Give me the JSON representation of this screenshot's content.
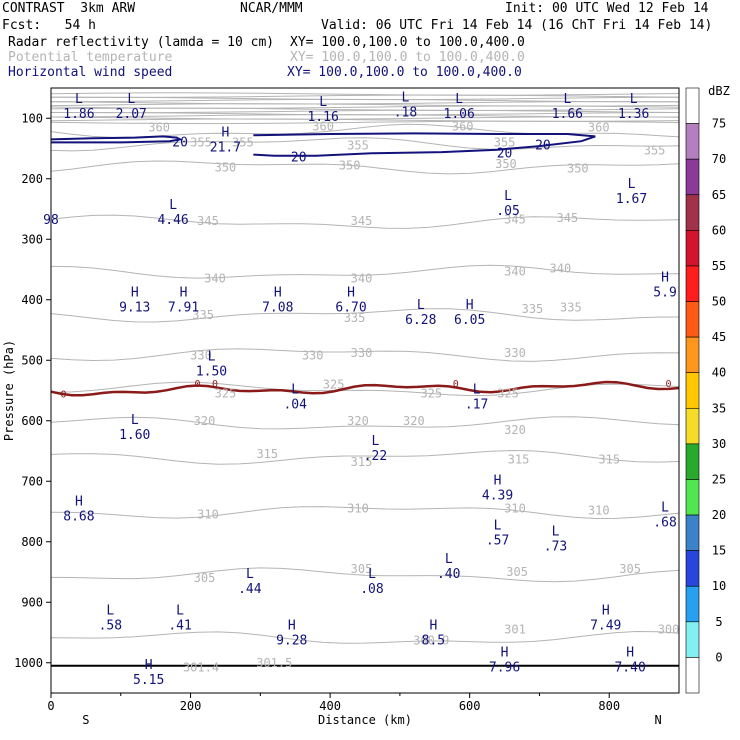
{
  "header": {
    "model": "CONTRAST  3km ARW",
    "source": "NCAR/MMM",
    "init": "Init: 00 UTC Wed 12 Feb 14",
    "fcst": "Fcst:   54 h",
    "valid": "Valid: 06 UTC Fri 14 Feb 14 (16 ChT Fri 14 Feb 14)",
    "fields": [
      {
        "name": "Radar reflectivity (lamda = 10 cm)",
        "xy": "XY= 100.0,100.0 to 100.0,400.0",
        "color": "#000000"
      },
      {
        "name": "Potential temperature",
        "xy": "XY= 100.0,100.0 to 100.0,400.0",
        "color": "#b4b4b4"
      },
      {
        "name": "Horizontal wind speed",
        "xy": "XY= 100.0,100.0 to 100.0,400.0",
        "color": "#12127a"
      }
    ]
  },
  "chart_data": {
    "type": "cross-section",
    "xlabel": "Distance (km)",
    "ylabel": "Pressure (hPa)",
    "xlim": [
      0,
      900
    ],
    "ylim": [
      1050,
      50
    ],
    "x_ticks": [
      "0",
      "200",
      "400",
      "600",
      "800"
    ],
    "y_ticks": [
      "100",
      "200",
      "300",
      "400",
      "500",
      "600",
      "700",
      "800",
      "900",
      "1000"
    ],
    "x_endpoints": [
      "S",
      "N"
    ],
    "theta_labels": [
      {
        "x": 155,
        "p": 115,
        "text": "360"
      },
      {
        "x": 390,
        "p": 114,
        "text": "360"
      },
      {
        "x": 590,
        "p": 114,
        "text": "360"
      },
      {
        "x": 785,
        "p": 115,
        "text": "360"
      },
      {
        "x": 215,
        "p": 140,
        "text": "355"
      },
      {
        "x": 275,
        "p": 140,
        "text": "355"
      },
      {
        "x": 440,
        "p": 145,
        "text": "355"
      },
      {
        "x": 650,
        "p": 140,
        "text": "355"
      },
      {
        "x": 865,
        "p": 153,
        "text": "355"
      },
      {
        "x": 250,
        "p": 181,
        "text": "350"
      },
      {
        "x": 428,
        "p": 178,
        "text": "350"
      },
      {
        "x": 652,
        "p": 176,
        "text": "350"
      },
      {
        "x": 755,
        "p": 183,
        "text": "350"
      },
      {
        "x": 225,
        "p": 270,
        "text": "345"
      },
      {
        "x": 445,
        "p": 270,
        "text": "345"
      },
      {
        "x": 665,
        "p": 267,
        "text": "345"
      },
      {
        "x": 740,
        "p": 265,
        "text": "345"
      },
      {
        "x": 235,
        "p": 365,
        "text": "340"
      },
      {
        "x": 445,
        "p": 365,
        "text": "340"
      },
      {
        "x": 665,
        "p": 353,
        "text": "340"
      },
      {
        "x": 730,
        "p": 348,
        "text": "340"
      },
      {
        "x": 218,
        "p": 425,
        "text": "335"
      },
      {
        "x": 435,
        "p": 430,
        "text": "335"
      },
      {
        "x": 690,
        "p": 415,
        "text": "335"
      },
      {
        "x": 745,
        "p": 413,
        "text": "335"
      },
      {
        "x": 215,
        "p": 492,
        "text": "330"
      },
      {
        "x": 375,
        "p": 492,
        "text": "330"
      },
      {
        "x": 445,
        "p": 488,
        "text": "330"
      },
      {
        "x": 665,
        "p": 488,
        "text": "330"
      },
      {
        "x": 250,
        "p": 555,
        "text": "325"
      },
      {
        "x": 405,
        "p": 540,
        "text": "325"
      },
      {
        "x": 545,
        "p": 555,
        "text": "325"
      },
      {
        "x": 655,
        "p": 555,
        "text": "325"
      },
      {
        "x": 220,
        "p": 600,
        "text": "320"
      },
      {
        "x": 440,
        "p": 600,
        "text": "320"
      },
      {
        "x": 520,
        "p": 600,
        "text": "320"
      },
      {
        "x": 665,
        "p": 615,
        "text": "320"
      },
      {
        "x": 310,
        "p": 655,
        "text": "315"
      },
      {
        "x": 445,
        "p": 668,
        "text": "315"
      },
      {
        "x": 670,
        "p": 664,
        "text": "315"
      },
      {
        "x": 800,
        "p": 664,
        "text": "315"
      },
      {
        "x": 225,
        "p": 755,
        "text": "310"
      },
      {
        "x": 440,
        "p": 745,
        "text": "310"
      },
      {
        "x": 665,
        "p": 745,
        "text": "310"
      },
      {
        "x": 785,
        "p": 748,
        "text": "310"
      },
      {
        "x": 220,
        "p": 860,
        "text": "305"
      },
      {
        "x": 445,
        "p": 845,
        "text": "305"
      },
      {
        "x": 668,
        "p": 850,
        "text": "305"
      },
      {
        "x": 830,
        "p": 845,
        "text": "305"
      },
      {
        "x": 665,
        "p": 945,
        "text": "301"
      },
      {
        "x": 885,
        "p": 945,
        "text": "300"
      },
      {
        "x": 545,
        "p": 963,
        "text": "300.9"
      },
      {
        "x": 320,
        "p": 1000,
        "text": "301.5"
      },
      {
        "x": 215,
        "p": 1008,
        "text": "301.4"
      }
    ],
    "wind_labels": [
      {
        "x": 185,
        "p": 140,
        "text": "20"
      },
      {
        "x": 355,
        "p": 165,
        "text": "20"
      },
      {
        "x": 650,
        "p": 158,
        "text": "20"
      },
      {
        "x": 705,
        "p": 145,
        "text": "20"
      }
    ],
    "dbz_zero_labels": [
      {
        "x": 18,
        "p": 555,
        "text": "0"
      },
      {
        "x": 210,
        "p": 538,
        "text": "0"
      },
      {
        "x": 235,
        "p": 538,
        "text": "0"
      },
      {
        "x": 580,
        "p": 538,
        "text": "0"
      },
      {
        "x": 885,
        "p": 538,
        "text": "0"
      }
    ],
    "extrema": [
      {
        "type": "L",
        "x": 40,
        "p": 75,
        "value": "1.86"
      },
      {
        "type": "L",
        "x": 115,
        "p": 75,
        "value": "2.07"
      },
      {
        "type": "L",
        "x": 390,
        "p": 80,
        "value": "1.16"
      },
      {
        "type": "L",
        "x": 508,
        "p": 72,
        "value": ".18"
      },
      {
        "type": "L",
        "x": 585,
        "p": 75,
        "value": "1.06"
      },
      {
        "type": "L",
        "x": 740,
        "p": 75,
        "value": "1.66"
      },
      {
        "type": "L",
        "x": 835,
        "p": 75,
        "value": "1.36"
      },
      {
        "type": "H",
        "x": 250,
        "p": 130,
        "value": "21.7"
      },
      {
        "type": "",
        "x": 0,
        "p": 250,
        "value": "98"
      },
      {
        "type": "L",
        "x": 175,
        "p": 250,
        "value": "4.46"
      },
      {
        "type": "L",
        "x": 655,
        "p": 235,
        "value": ".05"
      },
      {
        "type": "L",
        "x": 832,
        "p": 215,
        "value": "1.67"
      },
      {
        "type": "H",
        "x": 120,
        "p": 395,
        "value": "9.13"
      },
      {
        "type": "H",
        "x": 190,
        "p": 395,
        "value": "7.91"
      },
      {
        "type": "H",
        "x": 325,
        "p": 395,
        "value": "7.08"
      },
      {
        "type": "H",
        "x": 430,
        "p": 395,
        "value": "6.70"
      },
      {
        "type": "L",
        "x": 530,
        "p": 415,
        "value": "6.28"
      },
      {
        "type": "H",
        "x": 600,
        "p": 415,
        "value": "6.05"
      },
      {
        "type": "H",
        "x": 880,
        "p": 370,
        "value": "5.9"
      },
      {
        "type": "L",
        "x": 230,
        "p": 500,
        "value": "1.50"
      },
      {
        "type": "L",
        "x": 350,
        "p": 555,
        "value": ".04"
      },
      {
        "type": "L",
        "x": 610,
        "p": 555,
        "value": ".17"
      },
      {
        "type": "L",
        "x": 120,
        "p": 605,
        "value": "1.60"
      },
      {
        "type": "L",
        "x": 465,
        "p": 640,
        "value": ".22"
      },
      {
        "type": "H",
        "x": 640,
        "p": 705,
        "value": "4.39"
      },
      {
        "type": "H",
        "x": 40,
        "p": 740,
        "value": "8.68"
      },
      {
        "type": "L",
        "x": 640,
        "p": 780,
        "value": ".57"
      },
      {
        "type": "L",
        "x": 723,
        "p": 790,
        "value": ".73"
      },
      {
        "type": "L",
        "x": 880,
        "p": 750,
        "value": ".68"
      },
      {
        "type": "L",
        "x": 570,
        "p": 835,
        "value": ".40"
      },
      {
        "type": "L",
        "x": 285,
        "p": 860,
        "value": ".44"
      },
      {
        "type": "L",
        "x": 460,
        "p": 860,
        "value": ".08"
      },
      {
        "type": "L",
        "x": 85,
        "p": 920,
        "value": ".58"
      },
      {
        "type": "L",
        "x": 185,
        "p": 920,
        "value": ".41"
      },
      {
        "type": "H",
        "x": 345,
        "p": 945,
        "value": "9.28"
      },
      {
        "type": "H",
        "x": 548,
        "p": 945,
        "value": "8.5"
      },
      {
        "type": "H",
        "x": 795,
        "p": 920,
        "value": "7.49"
      },
      {
        "type": "H",
        "x": 140,
        "p": 1010,
        "value": "5.15"
      },
      {
        "type": "H",
        "x": 650,
        "p": 990,
        "value": "7.96"
      },
      {
        "type": "H",
        "x": 830,
        "p": 990,
        "value": "7.40"
      }
    ],
    "colorbar": {
      "unit": "dBZ",
      "levels": [
        "75",
        "70",
        "65",
        "60",
        "55",
        "50",
        "45",
        "40",
        "35",
        "30",
        "25",
        "20",
        "15",
        "10",
        "5",
        "0"
      ],
      "colors": [
        "#ffffff",
        "#b57ebf",
        "#8b3a96",
        "#a0324a",
        "#d2142d",
        "#ff1e1e",
        "#ff5a14",
        "#ff961e",
        "#ffc800",
        "#f5dc28",
        "#28aa2d",
        "#50e650",
        "#3c82c8",
        "#2846dc",
        "#28a0f0",
        "#82f0f0",
        "#ffffff"
      ]
    },
    "terrain_line": true,
    "colors": {
      "theta": "#b4b4b4",
      "wind": "#12127a",
      "dbz_zero": "#8b1a1a",
      "extrema_text": "#12127a"
    }
  }
}
